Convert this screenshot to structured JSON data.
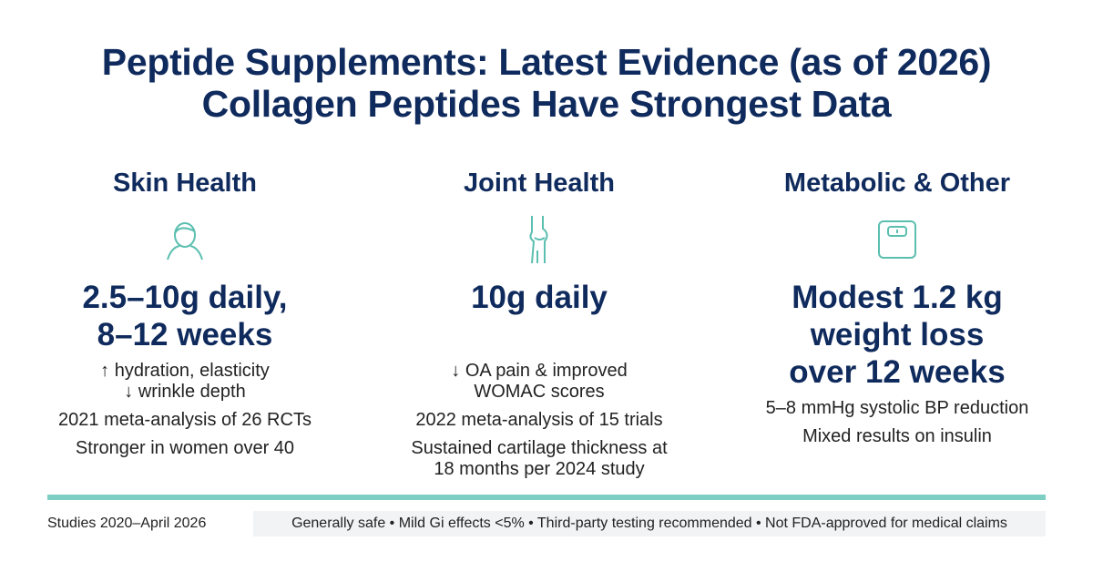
{
  "header": {
    "title_lines": [
      "Peptide Supplements: Latest Evidence (as of 2026)",
      "Collagen Peptides Have Strongest Data"
    ]
  },
  "columns": [
    {
      "heading": "Skin Health",
      "headline": [
        "2.5–10g daily,",
        "8–12 weeks"
      ],
      "notes": [
        [
          "↑ hydration, elasticity",
          "↓ wrinkle depth"
        ],
        [
          "2021 meta-analysis of 26 RCTs"
        ],
        [
          "Stronger in women over 40"
        ]
      ]
    },
    {
      "heading": "Joint Health",
      "headline": [
        "10g daily"
      ],
      "notes": [
        [
          "↓ OA pain & improved",
          "WOMAC scores"
        ],
        [
          "2022 meta-analysis of 15 trials"
        ],
        [
          "Sustained cartilage thickness at",
          "18 months per 2024 study"
        ]
      ]
    },
    {
      "heading": "Metabolic & Other",
      "headline": [
        "Modest 1.2 kg",
        "weight loss",
        "over 12 weeks"
      ],
      "notes": [
        [
          "5–8 mmHg systolic BP reduction"
        ],
        [
          "Mixed results on insulin"
        ]
      ]
    }
  ],
  "footer": {
    "source": "Studies 2020–April 2026",
    "notes": "Generally safe • Mild Gi effects <5% • Third-party testing recommended • Not FDA-approved for medical claims"
  }
}
